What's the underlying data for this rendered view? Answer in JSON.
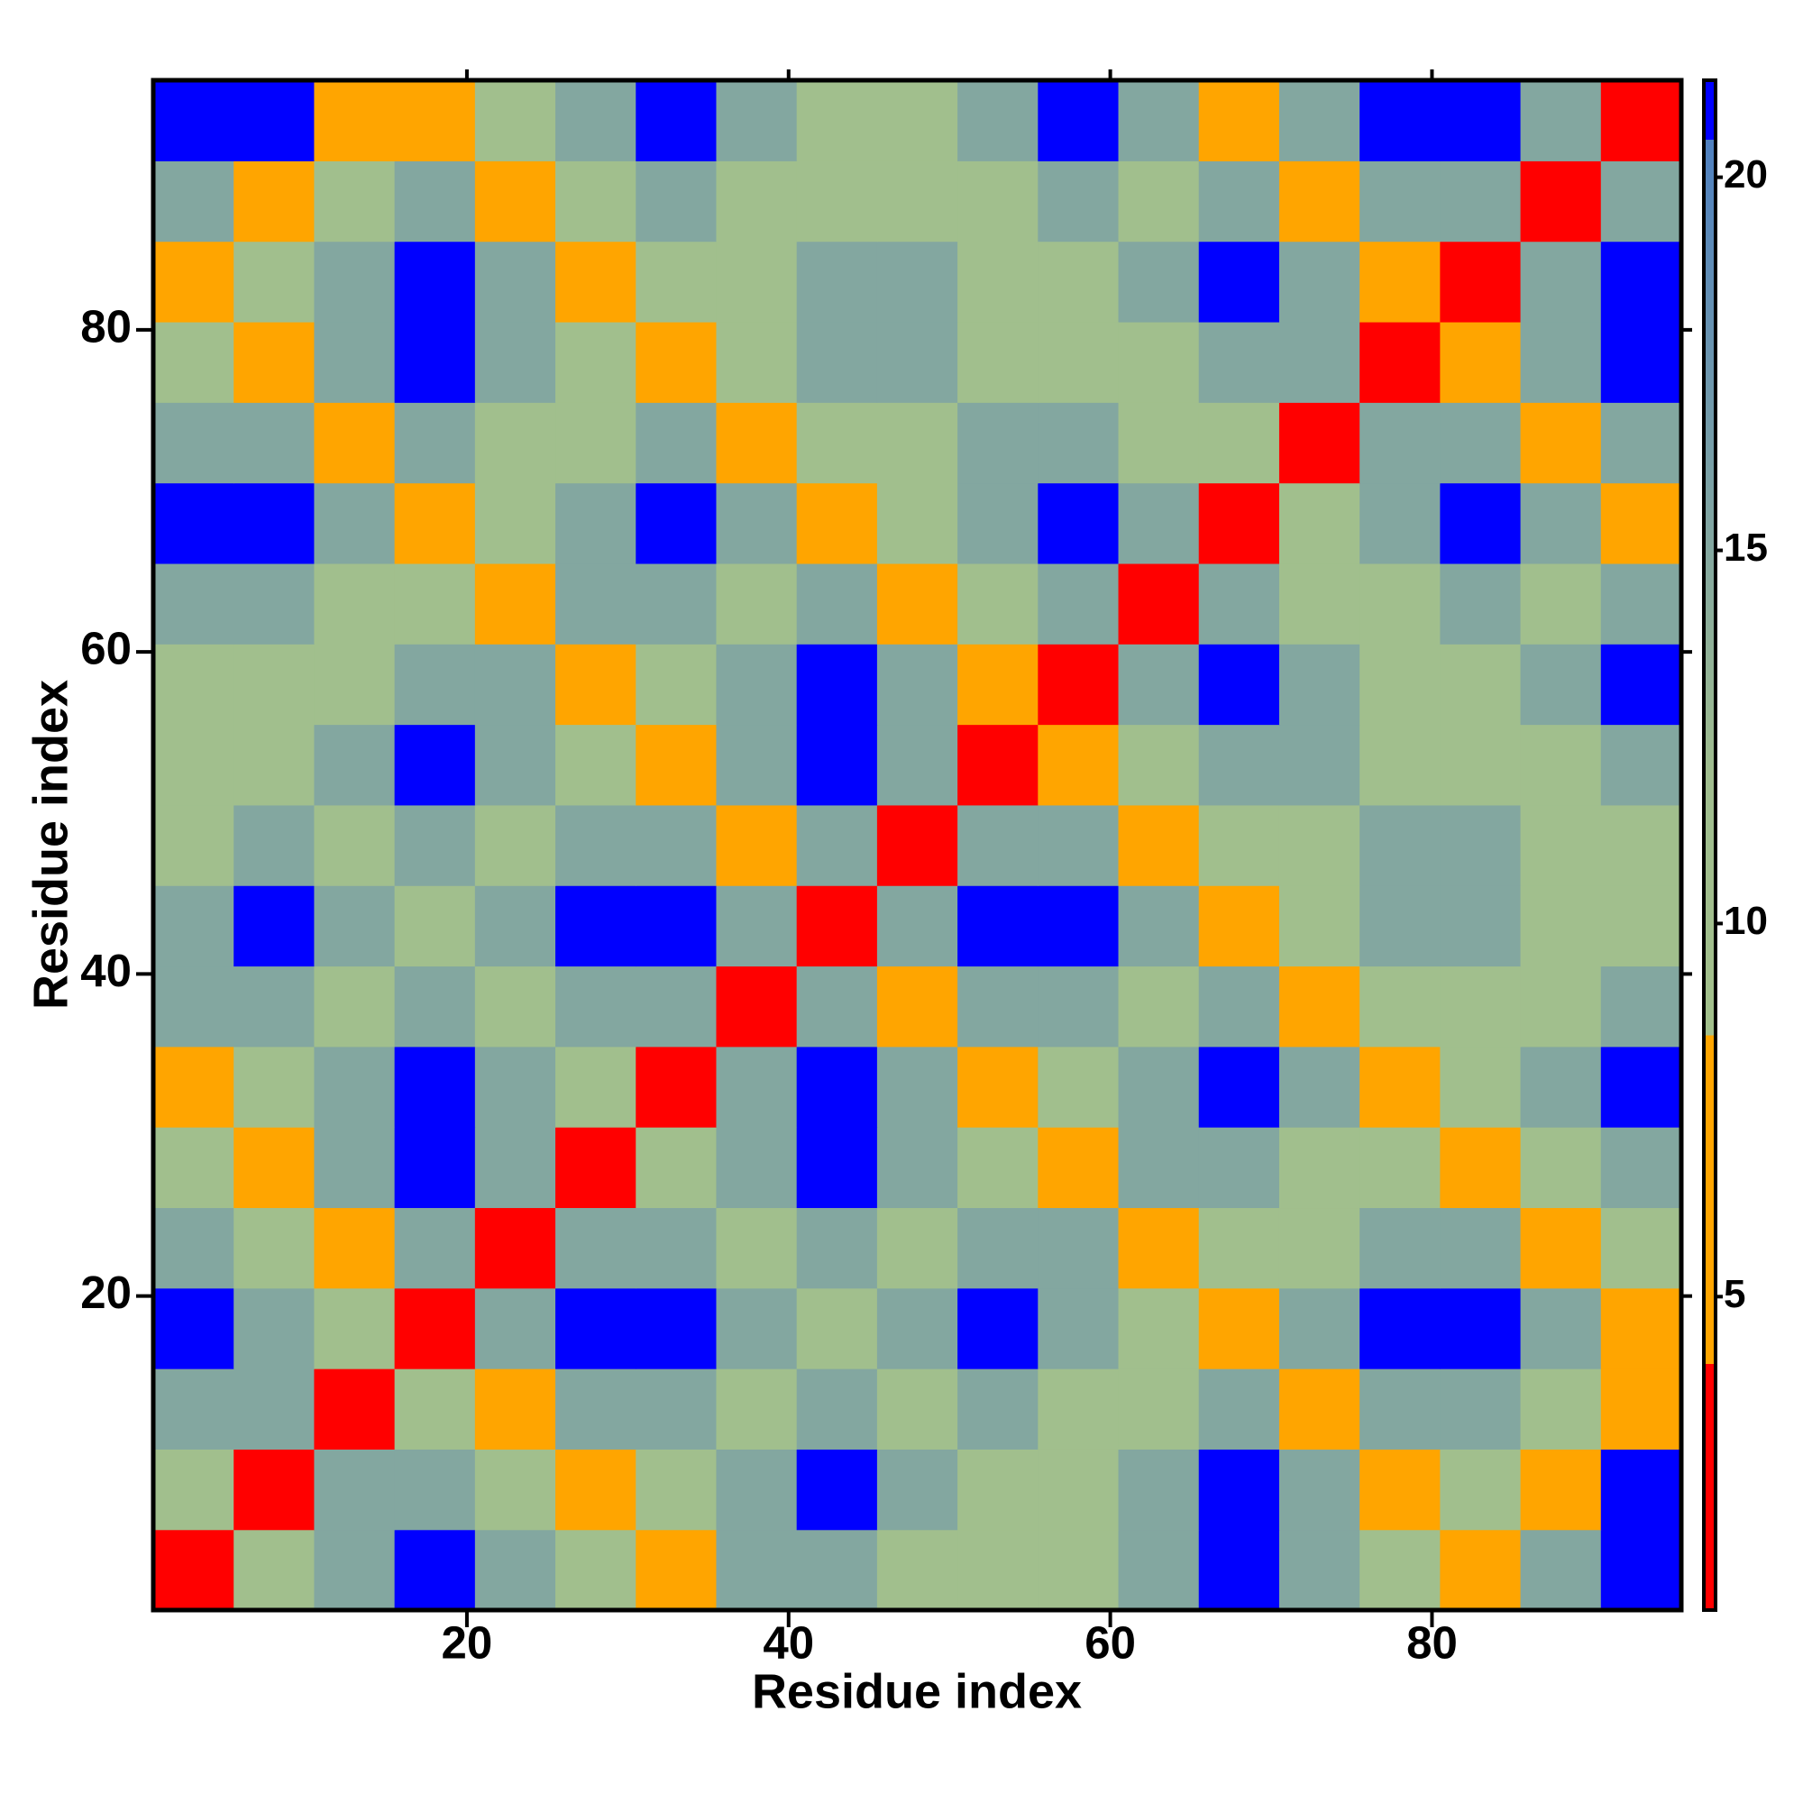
{
  "chart_data": {
    "type": "heatmap",
    "xlabel": "Residue index",
    "ylabel": "Residue index",
    "xlim": [
      0.5,
      95.5
    ],
    "ylim": [
      0.5,
      95.5
    ],
    "xticks": [
      20,
      40,
      60,
      80
    ],
    "yticks": [
      20,
      40,
      60,
      80
    ],
    "xbins": [
      0.5,
      5.5,
      10.5,
      15.5,
      20.5,
      25.5,
      30.5,
      35.5,
      40.5,
      45.5,
      50.5,
      55.5,
      60.5,
      65.5,
      70.5,
      75.5,
      80.5,
      85.5,
      90.5,
      95.5
    ],
    "ybins": [
      0.5,
      5.5,
      10.5,
      15.5,
      20.5,
      25.5,
      30.5,
      35.5,
      40.5,
      45.5,
      50.5,
      55.5,
      60.5,
      65.5,
      70.5,
      75.5,
      80.5,
      85.5,
      90.5,
      95.5
    ],
    "z": [
      [
        3.8,
        10,
        15,
        21,
        15,
        10,
        7,
        15,
        15,
        10,
        10,
        10,
        15,
        21,
        15,
        10,
        7,
        15,
        21
      ],
      [
        10,
        3.8,
        15,
        15,
        10,
        7,
        10,
        15,
        21,
        15,
        10,
        10,
        15,
        21,
        15,
        7,
        10,
        7,
        21
      ],
      [
        15,
        15,
        3.8,
        10,
        7,
        15,
        15,
        10,
        15,
        10,
        15,
        10,
        10,
        15,
        7,
        15,
        15,
        10,
        7
      ],
      [
        21,
        15,
        10,
        3.8,
        15,
        21,
        21,
        15,
        10,
        15,
        21,
        15,
        10,
        7,
        15,
        21,
        21,
        15,
        7
      ],
      [
        15,
        10,
        7,
        15,
        3.8,
        15,
        15,
        10,
        15,
        10,
        15,
        15,
        7,
        10,
        10,
        15,
        15,
        7,
        10
      ],
      [
        10,
        7,
        15,
        21,
        15,
        3.8,
        10,
        15,
        21,
        15,
        10,
        7,
        15,
        15,
        10,
        10,
        7,
        10,
        15
      ],
      [
        7,
        10,
        15,
        21,
        15,
        10,
        3.8,
        15,
        21,
        15,
        7,
        10,
        15,
        21,
        15,
        7,
        10,
        15,
        21
      ],
      [
        15,
        15,
        10,
        15,
        10,
        15,
        15,
        3.8,
        15,
        7,
        15,
        15,
        10,
        15,
        7,
        10,
        10,
        10,
        15
      ],
      [
        15,
        21,
        15,
        10,
        15,
        21,
        21,
        15,
        3.8,
        15,
        21,
        21,
        15,
        7,
        10,
        15,
        15,
        10,
        10
      ],
      [
        10,
        15,
        10,
        15,
        10,
        15,
        15,
        7,
        15,
        3.8,
        15,
        15,
        7,
        10,
        10,
        15,
        15,
        10,
        10
      ],
      [
        10,
        10,
        15,
        21,
        15,
        10,
        7,
        15,
        21,
        15,
        3.8,
        7,
        10,
        15,
        15,
        10,
        10,
        10,
        15
      ],
      [
        10,
        10,
        10,
        15,
        15,
        7,
        10,
        15,
        21,
        15,
        7,
        3.8,
        15,
        21,
        15,
        10,
        10,
        15,
        21
      ],
      [
        15,
        15,
        10,
        10,
        7,
        15,
        15,
        10,
        15,
        7,
        10,
        15,
        3.8,
        15,
        10,
        10,
        15,
        10,
        15
      ],
      [
        21,
        21,
        15,
        7,
        10,
        15,
        21,
        15,
        7,
        10,
        15,
        21,
        15,
        3.8,
        10,
        15,
        21,
        15,
        7
      ],
      [
        15,
        15,
        7,
        15,
        10,
        10,
        15,
        7,
        10,
        10,
        15,
        15,
        10,
        10,
        3.8,
        15,
        15,
        7,
        15
      ],
      [
        10,
        7,
        15,
        21,
        15,
        10,
        7,
        10,
        15,
        15,
        10,
        10,
        10,
        15,
        15,
        3.8,
        7,
        15,
        21
      ],
      [
        7,
        10,
        15,
        21,
        15,
        7,
        10,
        10,
        15,
        15,
        10,
        10,
        15,
        21,
        15,
        7,
        3.8,
        15,
        21
      ],
      [
        15,
        7,
        10,
        15,
        7,
        10,
        15,
        10,
        10,
        10,
        10,
        15,
        10,
        15,
        7,
        15,
        15,
        3.8,
        15
      ],
      [
        21,
        21,
        7,
        7,
        10,
        15,
        21,
        15,
        10,
        10,
        15,
        21,
        15,
        7,
        15,
        21,
        21,
        15,
        3.8
      ]
    ],
    "zlim": [
      0.8,
      21.3
    ],
    "zticks": [
      5,
      10,
      15,
      20
    ],
    "colorscale": [
      [
        0.8,
        "#ff0000"
      ],
      [
        4.1,
        "#ff0000"
      ],
      [
        4.1,
        "#ffa500"
      ],
      [
        8.5,
        "#ffa500"
      ],
      [
        8.5,
        "#a2c08c"
      ],
      [
        12,
        "#a0bd8e"
      ],
      [
        20.5,
        "#4f80c0"
      ],
      [
        20.5,
        "#0000ff"
      ],
      [
        21.3,
        "#0000ff"
      ]
    ]
  }
}
